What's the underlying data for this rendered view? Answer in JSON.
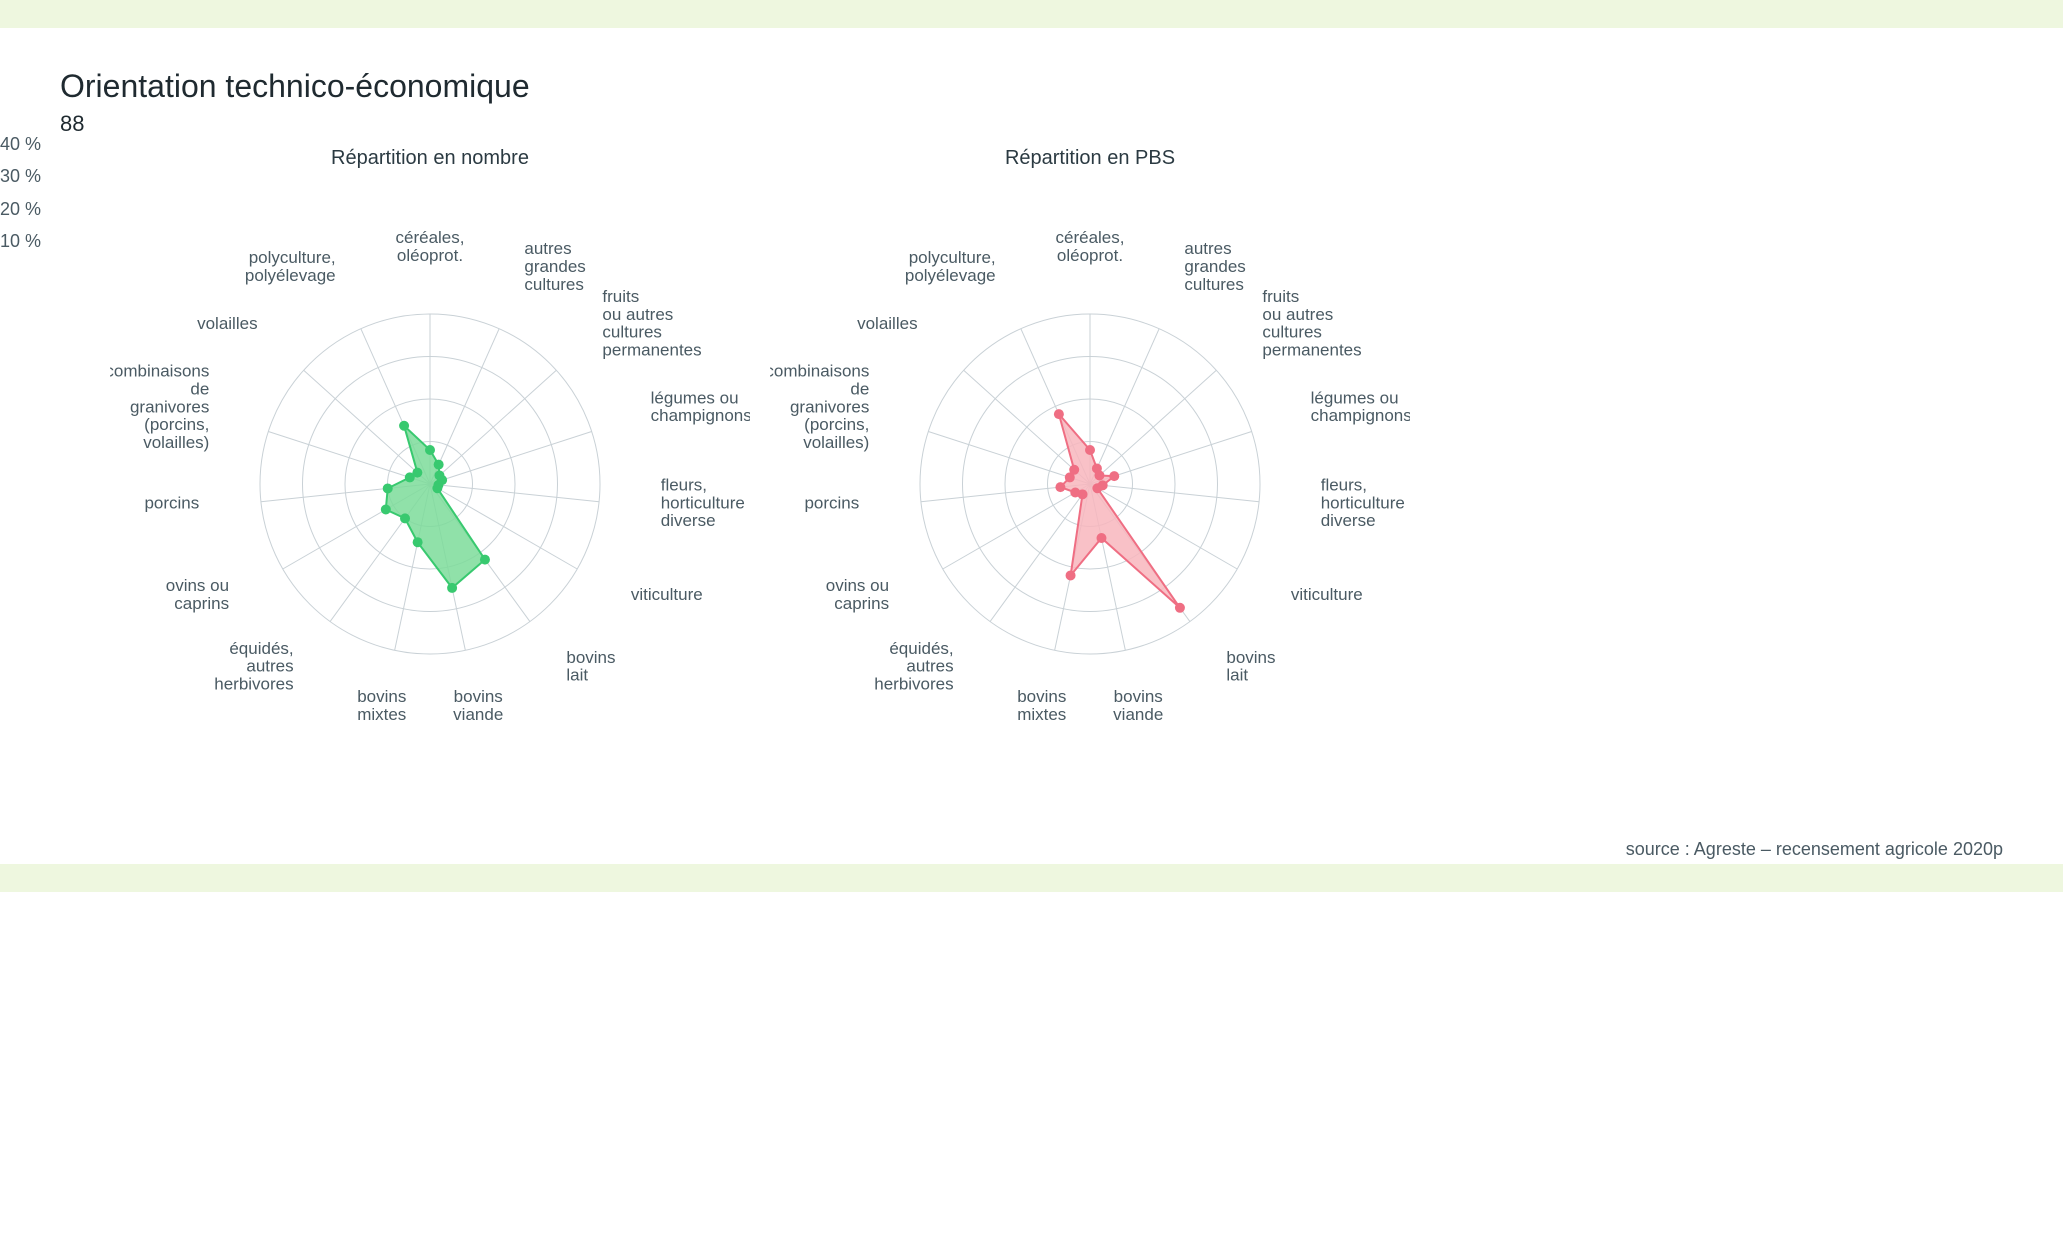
{
  "header": {
    "title": "Orientation technico-économique",
    "subtitle": "88"
  },
  "scale_legend": [
    "40 %",
    "30 %",
    "20 %",
    "10 %"
  ],
  "source": "source : Agreste – recensement agricole 2020p",
  "categories": [
    "céréales,\noléoprot.",
    "autres\ngrandes\ncultures",
    "fruits\nou autres\ncultures\npermanentes",
    "légumes ou\nchampignons",
    "fleurs,\nhorticulture\ndiverse",
    "viticulture",
    "bovins\nlait",
    "bovins\nviande",
    "bovins\nmixtes",
    "équidés,\nautres\nherbivores",
    "ovins ou\ncaprins",
    "porcins",
    "combinaisons\nde\ngranivores\n(porcins,\nvolailles)",
    "volailles",
    "polyculture,\npolyélevage"
  ],
  "radar": {
    "type": "radar",
    "grid_color": "#c9d1d6",
    "spoke_color": "#c9d1d6",
    "rings": [
      10,
      20,
      30,
      40
    ],
    "max": 40,
    "label_fontsize": 17,
    "title_fontsize": 20,
    "marker_radius": 5,
    "line_width": 2,
    "chart_radius": 170,
    "label_offset": 62,
    "svg_size": 640
  },
  "charts": [
    {
      "title": "Répartition en nombre",
      "fill_color": "#7cdc9a",
      "stroke_color": "#38c96f",
      "marker_color": "#38c96f",
      "values": [
        8,
        5,
        3,
        3,
        2,
        2,
        22,
        25,
        14,
        10,
        12,
        10,
        5,
        4,
        15
      ]
    },
    {
      "title": "Répartition en PBS",
      "fill_color": "#f8b6bd",
      "stroke_color": "#ef6e83",
      "marker_color": "#ef6e83",
      "values": [
        8,
        4,
        3,
        6,
        3,
        2,
        36,
        13,
        22,
        3,
        4,
        7,
        5,
        5,
        18
      ]
    }
  ]
}
